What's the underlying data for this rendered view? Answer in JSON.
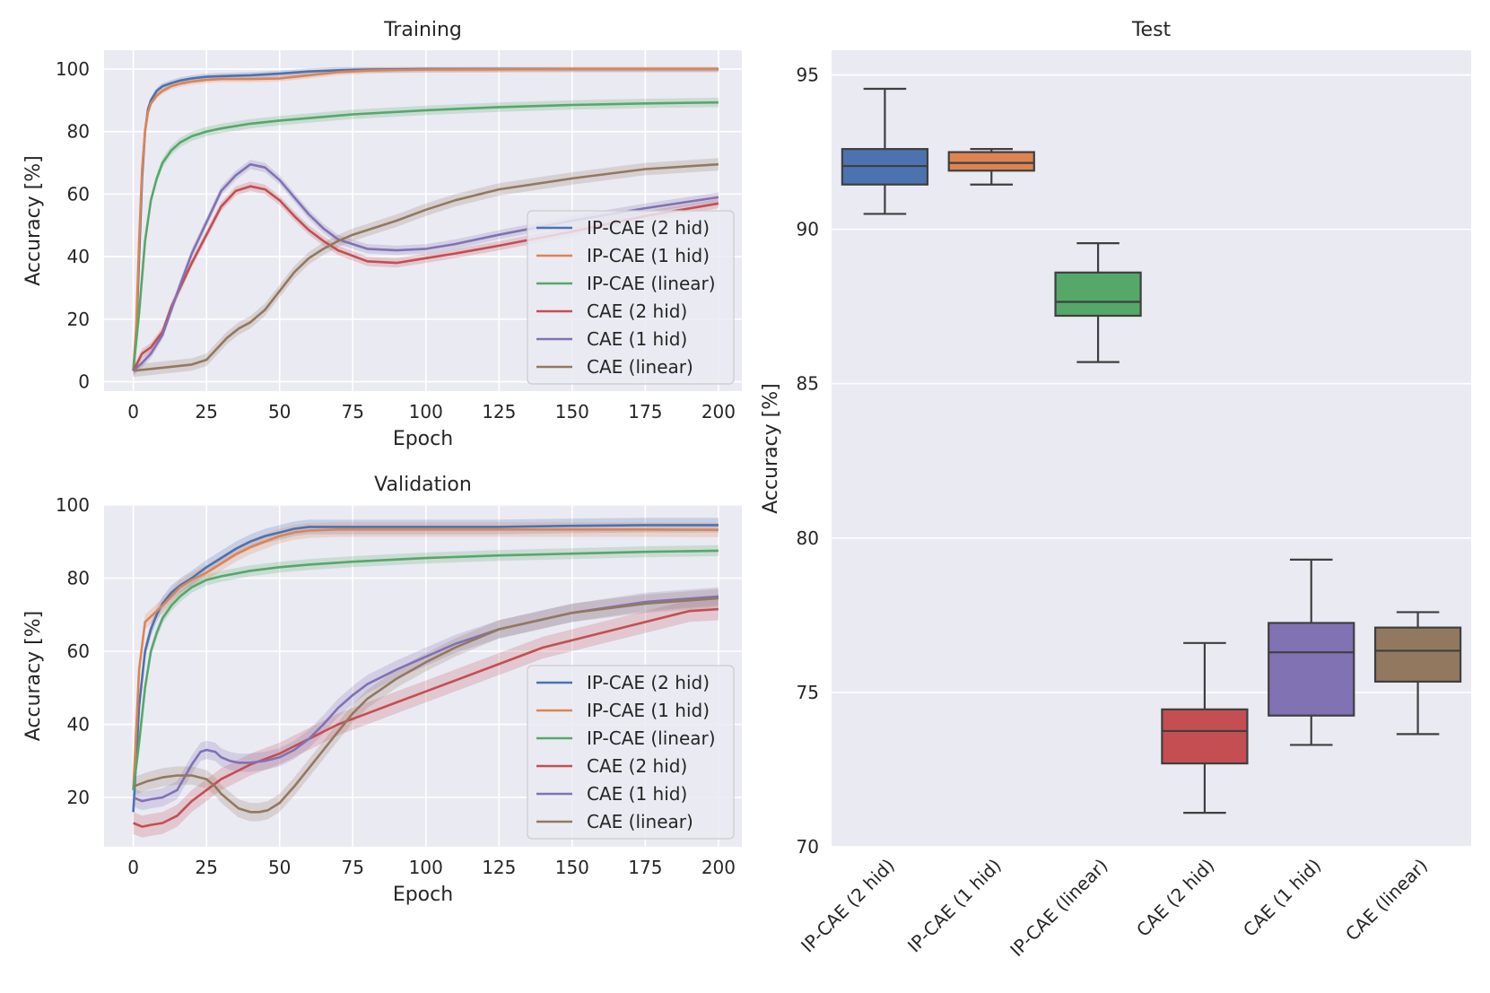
{
  "colors": {
    "blue": "#4c72b0",
    "orange": "#dd8452",
    "green": "#55a868",
    "red": "#c44e52",
    "purple": "#8172b3",
    "brown": "#937860",
    "axes_bg": "#eaeaf2",
    "grid": "#ffffff",
    "box_line": "#3f3f3f"
  },
  "chart_data": [
    {
      "id": "training",
      "type": "line",
      "title": "Training",
      "xlabel": "Epoch",
      "ylabel": "Accuracy [%]",
      "xlim": [
        -10,
        208
      ],
      "ylim": [
        -3,
        106
      ],
      "xticks": [
        0,
        25,
        50,
        75,
        100,
        125,
        150,
        175,
        200
      ],
      "yticks": [
        0,
        20,
        40,
        60,
        80,
        100
      ],
      "legend_position": "lower-right",
      "series": [
        {
          "name": "IP-CAE (2 hid)",
          "color_key": "blue",
          "band": 1.0,
          "x": [
            0,
            1,
            2,
            3,
            4,
            5,
            6,
            8,
            10,
            13,
            16,
            20,
            25,
            30,
            40,
            50,
            60,
            70,
            80,
            90,
            100,
            125,
            150,
            175,
            200
          ],
          "values": [
            3.5,
            15,
            40,
            65,
            80,
            87,
            90,
            93,
            94.5,
            95.5,
            96.3,
            97,
            97.5,
            97.7,
            98,
            98.5,
            99.2,
            99.6,
            99.8,
            99.9,
            100,
            100,
            100,
            100,
            100
          ]
        },
        {
          "name": "IP-CAE (1 hid)",
          "color_key": "orange",
          "band": 1.0,
          "x": [
            0,
            1,
            2,
            3,
            4,
            5,
            6,
            8,
            10,
            13,
            16,
            20,
            25,
            30,
            40,
            50,
            60,
            70,
            80,
            90,
            100,
            125,
            150,
            175,
            200
          ],
          "values": [
            3.5,
            18,
            45,
            68,
            80,
            86,
            89,
            91.5,
            93,
            94.5,
            95.3,
            96,
            96.5,
            96.8,
            96.8,
            97,
            98,
            99,
            99.5,
            99.7,
            99.8,
            99.9,
            100,
            100,
            100
          ]
        },
        {
          "name": "IP-CAE (linear)",
          "color_key": "green",
          "band": 1.5,
          "x": [
            0,
            2,
            4,
            6,
            8,
            10,
            13,
            16,
            20,
            25,
            30,
            40,
            50,
            60,
            75,
            100,
            125,
            150,
            175,
            200
          ],
          "values": [
            3.5,
            22,
            45,
            58,
            65,
            70,
            74,
            76.5,
            78.5,
            80,
            81,
            82.5,
            83.5,
            84.3,
            85.5,
            86.8,
            87.8,
            88.5,
            89,
            89.3
          ]
        },
        {
          "name": "CAE (2 hid)",
          "color_key": "red",
          "band": 1.5,
          "x": [
            0,
            3,
            6,
            10,
            13,
            16,
            20,
            25,
            30,
            35,
            40,
            45,
            50,
            55,
            60,
            65,
            70,
            80,
            90,
            100,
            110,
            125,
            150,
            175,
            200
          ],
          "values": [
            3.5,
            9,
            11,
            16,
            24,
            30,
            38,
            47,
            56,
            61,
            62.5,
            61.5,
            58,
            53,
            48.5,
            45,
            42,
            38.5,
            38,
            39.5,
            41,
            43.5,
            48,
            53,
            57
          ]
        },
        {
          "name": "CAE (1 hid)",
          "color_key": "purple",
          "band": 1.5,
          "x": [
            0,
            3,
            6,
            10,
            13,
            16,
            20,
            25,
            30,
            35,
            40,
            45,
            50,
            55,
            60,
            65,
            70,
            80,
            90,
            100,
            110,
            125,
            150,
            175,
            200
          ],
          "values": [
            3.5,
            6,
            9,
            15,
            23,
            31,
            41,
            51,
            61,
            66,
            69.5,
            68.5,
            64.5,
            59,
            53.5,
            49,
            45.5,
            42.5,
            42,
            42.5,
            44,
            47,
            51.5,
            55.5,
            59
          ]
        },
        {
          "name": "CAE (linear)",
          "color_key": "brown",
          "band": 2.0,
          "x": [
            0,
            10,
            20,
            25,
            28,
            32,
            36,
            40,
            45,
            50,
            55,
            60,
            65,
            70,
            75,
            80,
            90,
            100,
            110,
            125,
            150,
            175,
            200
          ],
          "values": [
            3.5,
            4.5,
            5.5,
            7,
            10,
            14,
            17,
            19,
            23,
            29,
            35,
            39.5,
            42.5,
            45,
            47,
            48.5,
            51.5,
            55,
            58,
            61.5,
            65,
            68,
            69.5
          ]
        }
      ]
    },
    {
      "id": "validation",
      "type": "line",
      "title": "Validation",
      "xlabel": "Epoch",
      "ylabel": "Accuracy [%]",
      "xlim": [
        -10,
        208
      ],
      "ylim": [
        6.5,
        100
      ],
      "xticks": [
        0,
        25,
        50,
        75,
        100,
        125,
        150,
        175,
        200
      ],
      "yticks": [
        20,
        40,
        60,
        80,
        100
      ],
      "legend_position": "lower-right",
      "series": [
        {
          "name": "IP-CAE (2 hid)",
          "color_key": "blue",
          "band": 2.0,
          "x": [
            0,
            2,
            4,
            6,
            8,
            10,
            13,
            16,
            20,
            25,
            30,
            35,
            40,
            45,
            50,
            55,
            60,
            70,
            80,
            100,
            125,
            150,
            175,
            200
          ],
          "values": [
            16,
            45,
            60,
            66,
            70,
            73,
            76,
            78,
            80,
            83,
            85.5,
            88,
            90,
            91.5,
            92.5,
            93.5,
            94,
            94,
            94,
            94,
            94,
            94.3,
            94.5,
            94.5
          ]
        },
        {
          "name": "IP-CAE (1 hid)",
          "color_key": "orange",
          "band": 2.0,
          "x": [
            0,
            2,
            4,
            6,
            8,
            10,
            13,
            16,
            20,
            25,
            30,
            35,
            40,
            45,
            50,
            55,
            60,
            70,
            80,
            100,
            125,
            150,
            175,
            200
          ],
          "values": [
            22,
            55,
            68,
            69.5,
            71,
            72.5,
            75,
            77.5,
            79.5,
            81.5,
            84,
            86.5,
            88.5,
            90,
            91.5,
            92.5,
            93,
            93.3,
            93.3,
            93.3,
            93.3,
            93.3,
            93.3,
            93.2
          ]
        },
        {
          "name": "IP-CAE (linear)",
          "color_key": "green",
          "band": 1.5,
          "x": [
            0,
            2,
            4,
            6,
            8,
            10,
            13,
            16,
            20,
            25,
            30,
            40,
            50,
            60,
            75,
            100,
            125,
            150,
            175,
            200
          ],
          "values": [
            22,
            35,
            50,
            60,
            65,
            69,
            72.5,
            75,
            77.5,
            79.5,
            80.5,
            82,
            83,
            83.7,
            84.5,
            85.5,
            86.2,
            86.7,
            87.2,
            87.5
          ]
        },
        {
          "name": "CAE (2 hid)",
          "color_key": "red",
          "band": 3.0,
          "x": [
            0,
            3,
            6,
            10,
            15,
            20,
            25,
            30,
            35,
            40,
            45,
            50,
            55,
            60,
            65,
            70,
            75,
            80,
            90,
            100,
            110,
            120,
            130,
            140,
            150,
            160,
            175,
            190,
            200
          ],
          "values": [
            13,
            12,
            12.5,
            13,
            15,
            19,
            22,
            25,
            27,
            29,
            30.5,
            32,
            34,
            36,
            38,
            40,
            41.5,
            43,
            46,
            49,
            52,
            55,
            58,
            61,
            63,
            65,
            68,
            71,
            71.5
          ]
        },
        {
          "name": "CAE (1 hid)",
          "color_key": "purple",
          "band": 2.5,
          "x": [
            0,
            3,
            6,
            10,
            15,
            20,
            23,
            25,
            28,
            30,
            33,
            36,
            40,
            45,
            50,
            55,
            60,
            65,
            70,
            75,
            80,
            90,
            100,
            110,
            125,
            150,
            175,
            200
          ],
          "values": [
            20,
            19,
            19.5,
            20,
            22,
            29,
            32.5,
            33,
            32.5,
            31,
            30,
            29.5,
            29.5,
            30,
            31,
            33,
            36,
            40,
            44.5,
            48,
            51,
            55,
            58.5,
            62,
            66,
            70.5,
            73.5,
            75
          ]
        },
        {
          "name": "CAE (linear)",
          "color_key": "brown",
          "band": 2.5,
          "x": [
            0,
            5,
            10,
            15,
            20,
            25,
            28,
            30,
            33,
            36,
            40,
            43,
            46,
            50,
            55,
            60,
            65,
            70,
            75,
            80,
            90,
            100,
            110,
            125,
            150,
            175,
            200
          ],
          "values": [
            23,
            24.5,
            25.5,
            26,
            26,
            25,
            23,
            21,
            19,
            17,
            16,
            16,
            16.5,
            18.5,
            23,
            28,
            33,
            38,
            43,
            47,
            52.5,
            57,
            61,
            66,
            70.5,
            73,
            74.5
          ]
        }
      ]
    },
    {
      "id": "test",
      "type": "box",
      "title": "Test",
      "xlabel": "",
      "ylabel": "Accuracy [%]",
      "ylim": [
        70,
        95.8
      ],
      "yticks": [
        70,
        75,
        80,
        85,
        90,
        95
      ],
      "categories": [
        "IP-CAE (2 hid)",
        "IP-CAE (1 hid)",
        "IP-CAE (linear)",
        "CAE (2 hid)",
        "CAE (1 hid)",
        "CAE (linear)"
      ],
      "boxes": [
        {
          "name": "IP-CAE (2 hid)",
          "color_key": "blue",
          "whisker_low": 90.5,
          "q1": 91.45,
          "median": 92.05,
          "q3": 92.6,
          "whisker_high": 94.55
        },
        {
          "name": "IP-CAE (1 hid)",
          "color_key": "orange",
          "whisker_low": 91.45,
          "q1": 91.9,
          "median": 92.15,
          "q3": 92.5,
          "whisker_high": 92.6
        },
        {
          "name": "IP-CAE (linear)",
          "color_key": "green",
          "whisker_low": 85.7,
          "q1": 87.2,
          "median": 87.65,
          "q3": 88.6,
          "whisker_high": 89.55
        },
        {
          "name": "CAE (2 hid)",
          "color_key": "red",
          "whisker_low": 71.1,
          "q1": 72.7,
          "median": 73.75,
          "q3": 74.45,
          "whisker_high": 76.6
        },
        {
          "name": "CAE (1 hid)",
          "color_key": "purple",
          "whisker_low": 73.3,
          "q1": 74.25,
          "median": 76.3,
          "q3": 77.25,
          "whisker_high": 79.3
        },
        {
          "name": "CAE (linear)",
          "color_key": "brown",
          "whisker_low": 73.65,
          "q1": 75.35,
          "median": 76.35,
          "q3": 77.1,
          "whisker_high": 77.6
        }
      ]
    }
  ]
}
